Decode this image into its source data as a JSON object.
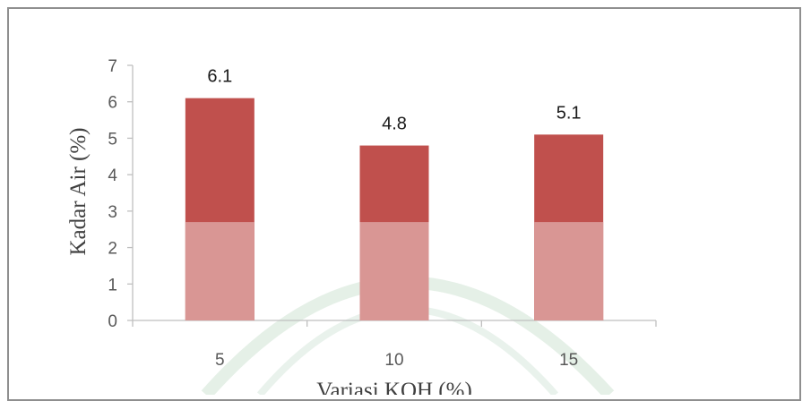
{
  "chart_data": {
    "type": "bar",
    "title": "",
    "xlabel": "Variasi KOH (%)",
    "ylabel": "Kadar Air (%)",
    "categories": [
      "5",
      "10",
      "15"
    ],
    "values": [
      6.1,
      4.8,
      5.1
    ],
    "data_labels": [
      "6.1",
      "4.8",
      "5.1"
    ],
    "ylim": [
      0,
      7
    ],
    "yticks": [
      0,
      1,
      2,
      3,
      4,
      5,
      6,
      7
    ],
    "grid": false,
    "legend": "none",
    "colors": {
      "bar": "#c0504d",
      "bar_faded": "#d99694",
      "axis": "#bfbfbf",
      "watermark": "#cfe3d4"
    }
  }
}
